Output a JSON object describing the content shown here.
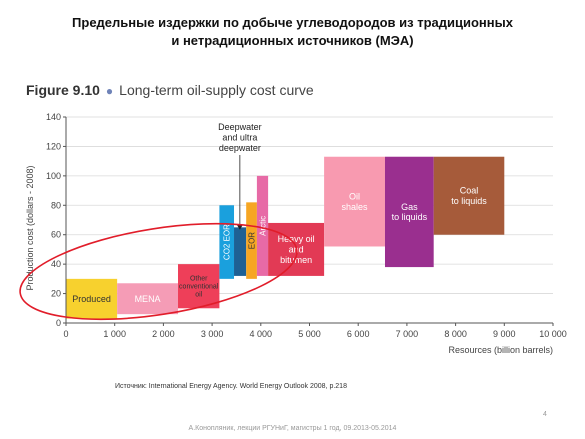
{
  "slide": {
    "title_line1": "Предельные издержки по добыче углеводородов из традиционных",
    "title_line2": "и нетрадиционных источников (МЭА)",
    "source": "Источник: International Energy Agency. World Energy Outlook 2008, p.218",
    "page_number": "4",
    "footer": "А.Конопляник, лекции РГУНиГ, магистры 1 год, 09.2013-05.2014"
  },
  "figure": {
    "number": "Figure 9.10",
    "name": "Long-term oil-supply cost curve"
  },
  "chart_data": {
    "type": "bar",
    "xlabel": "Resources (billion barrels)",
    "ylabel": "Production cost (dollars - 2008)",
    "xlim": [
      0,
      10000
    ],
    "ylim": [
      0,
      140
    ],
    "x_ticks": [
      0,
      1000,
      2000,
      3000,
      4000,
      5000,
      6000,
      7000,
      8000,
      9000,
      10000
    ],
    "x_tick_labels": [
      "0",
      "1 000",
      "2 000",
      "3 000",
      "4 000",
      "5 000",
      "6 000",
      "7 000",
      "8 000",
      "9 000",
      "10 000"
    ],
    "y_ticks": [
      0,
      20,
      40,
      60,
      80,
      100,
      120,
      140
    ],
    "y_tick_labels": [
      "0",
      "20",
      "40",
      "60",
      "80",
      "100",
      "120",
      "140"
    ],
    "blocks": [
      {
        "label": "Produced",
        "x0": 0,
        "x1": 1050,
        "y0": 3,
        "y1": 30,
        "color": "#f7d12e",
        "text_color": "#333333",
        "label_lines": [
          "Produced"
        ]
      },
      {
        "label": "MENA",
        "x0": 1050,
        "x1": 2300,
        "y0": 6,
        "y1": 27,
        "color": "#f59cb6",
        "text_color": "#ffffff",
        "label_lines": [
          "MENA"
        ]
      },
      {
        "label": "Other conventional oil",
        "x0": 2300,
        "x1": 3150,
        "y0": 10,
        "y1": 40,
        "color": "#ee3f59",
        "text_color": "#333333",
        "label_lines": [
          "Other",
          "conventional",
          "oil"
        ]
      },
      {
        "label": "CO2 EOR",
        "x0": 3150,
        "x1": 3450,
        "y0": 30,
        "y1": 80,
        "color": "#1aa0dd",
        "text_color": "#ffffff",
        "label_lines": [
          "CO2 EOR"
        ]
      },
      {
        "label": "Deepwater and ultra deepwater",
        "x0": 3450,
        "x1": 3700,
        "y0": 32,
        "y1": 65,
        "color": "#1e6094",
        "text_color": "#ffffff",
        "label_lines": []
      },
      {
        "label": "EOR",
        "x0": 3700,
        "x1": 3920,
        "y0": 30,
        "y1": 82,
        "color": "#f6a623",
        "text_color": "#333333",
        "label_lines": [
          "EOR"
        ]
      },
      {
        "label": "Arctic",
        "x0": 3920,
        "x1": 4150,
        "y0": 32,
        "y1": 100,
        "color": "#e76aa6",
        "text_color": "#ffffff",
        "label_lines": [
          "Arctic"
        ]
      },
      {
        "label": "Heavy oil and bitumen",
        "x0": 4150,
        "x1": 5300,
        "y0": 32,
        "y1": 68,
        "color": "#e23a55",
        "text_color": "#ffffff",
        "label_lines": [
          "Heavy oil",
          "and",
          "bitumen"
        ]
      },
      {
        "label": "Oil shales",
        "x0": 5300,
        "x1": 6550,
        "y0": 52,
        "y1": 113,
        "color": "#f89ab0",
        "text_color": "#ffffff",
        "label_lines": [
          "Oil",
          "shales"
        ]
      },
      {
        "label": "Gas to liquids",
        "x0": 6550,
        "x1": 7550,
        "y0": 38,
        "y1": 113,
        "color": "#9a2f8f",
        "text_color": "#ffffff",
        "label_lines": [
          "Gas",
          "to liquids"
        ]
      },
      {
        "label": "Coal to liquids",
        "x0": 7550,
        "x1": 9000,
        "y0": 60,
        "y1": 113,
        "color": "#a65b3a",
        "text_color": "#ffffff",
        "label_lines": [
          "Coal",
          "to liquids"
        ]
      }
    ],
    "annotations": [
      {
        "text_lines": [
          "Deepwater",
          "and ultra",
          "deepwater"
        ],
        "arrow_to": [
          3570,
          62
        ]
      }
    ]
  }
}
